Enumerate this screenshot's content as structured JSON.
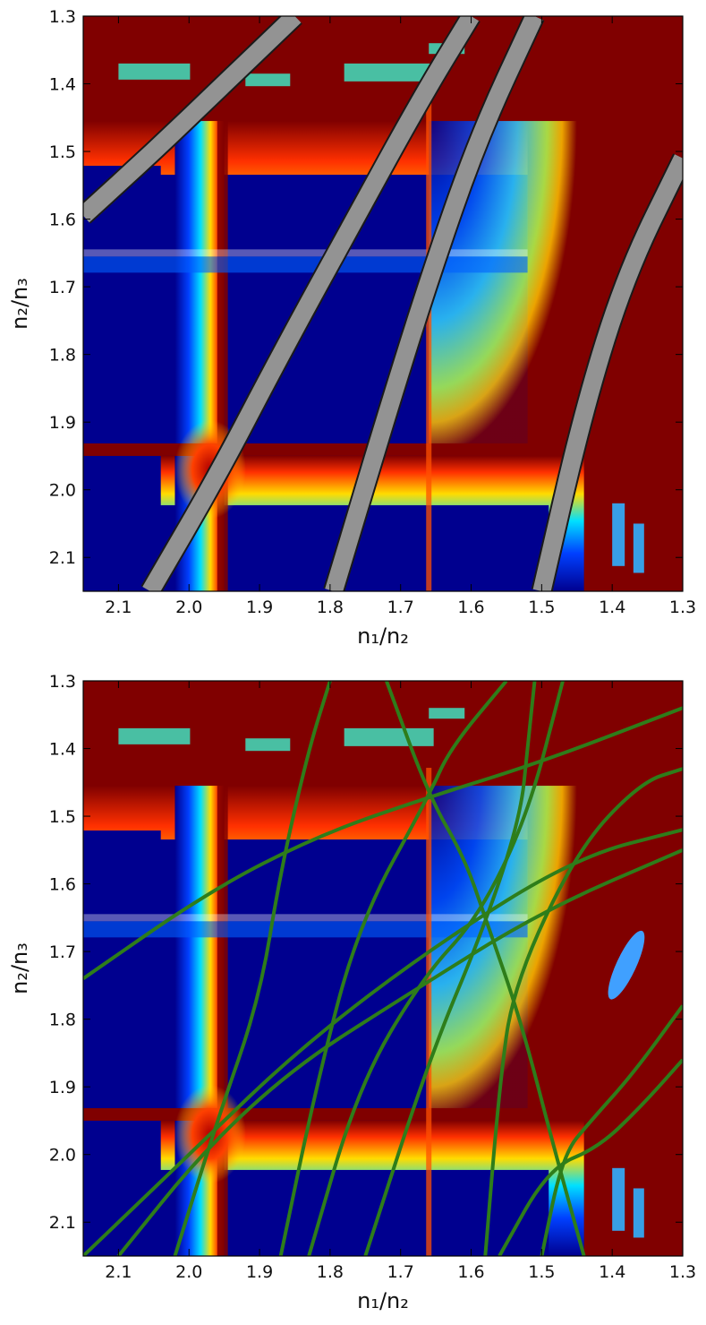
{
  "chart_data": [
    {
      "type": "heatmap",
      "title": "",
      "xlabel": "n₁/n₂",
      "ylabel": "n₂/n₃",
      "xlim": [
        2.15,
        1.3
      ],
      "ylim": [
        2.15,
        1.3
      ],
      "x_inverted": true,
      "y_inverted": true,
      "x_ticks": [
        "2.1",
        "2.0",
        "1.9",
        "1.8",
        "1.7",
        "1.6",
        "1.5",
        "1.4",
        "1.3"
      ],
      "y_ticks": [
        "1.3",
        "1.4",
        "1.5",
        "1.6",
        "1.7",
        "1.8",
        "1.9",
        "2.0",
        "2.1"
      ],
      "colormap": "jet",
      "grid": false,
      "features": {
        "resonance_lines_y": [
          1.455,
          1.65,
          1.95
        ],
        "resonance_lines_x": [
          1.95,
          1.66
        ],
        "hot_region_color": "#800000",
        "low_region_color": "#00008f"
      },
      "overlay": {
        "kind": "shaded_bands",
        "fill_color": "#9a9a9a",
        "edge_color": "#1a1a1a",
        "bands": [
          {
            "points": [
              [
                2.15,
                1.595
              ],
              [
                2.05,
                1.5
              ],
              [
                1.95,
                1.4
              ],
              [
                1.85,
                1.3
              ]
            ]
          },
          {
            "points": [
              [
                2.055,
                2.15
              ],
              [
                1.96,
                1.98
              ],
              [
                1.87,
                1.8
              ],
              [
                1.765,
                1.6
              ],
              [
                1.67,
                1.42
              ],
              [
                1.6,
                1.3
              ]
            ]
          },
          {
            "points": [
              [
                1.795,
                2.15
              ],
              [
                1.72,
                1.89
              ],
              [
                1.66,
                1.69
              ],
              [
                1.59,
                1.48
              ],
              [
                1.51,
                1.3
              ]
            ]
          },
          {
            "points": [
              [
                1.5,
                2.15
              ],
              [
                1.44,
                1.88
              ],
              [
                1.38,
                1.68
              ],
              [
                1.3,
                1.51
              ]
            ]
          }
        ]
      }
    },
    {
      "type": "heatmap",
      "title": "",
      "xlabel": "n₁/n₂",
      "ylabel": "n₂/n₃",
      "xlim": [
        2.15,
        1.3
      ],
      "ylim": [
        2.15,
        1.3
      ],
      "x_inverted": true,
      "y_inverted": true,
      "x_ticks": [
        "2.1",
        "2.0",
        "1.9",
        "1.8",
        "1.7",
        "1.6",
        "1.5",
        "1.4",
        "1.3"
      ],
      "y_ticks": [
        "1.3",
        "1.4",
        "1.5",
        "1.6",
        "1.7",
        "1.8",
        "1.9",
        "2.0",
        "2.1"
      ],
      "colormap": "jet",
      "grid": false,
      "features": {
        "resonance_lines_y": [
          1.455,
          1.65,
          1.95
        ],
        "resonance_lines_x": [
          1.95,
          1.66
        ],
        "hot_region_color": "#800000",
        "low_region_color": "#00008f"
      },
      "overlay": {
        "kind": "curves",
        "color": "#2e7d1a",
        "curves": [
          [
            [
              2.15,
              1.74
            ],
            [
              1.97,
              1.61
            ],
            [
              1.82,
              1.53
            ],
            [
              1.67,
              1.475
            ],
            [
              1.5,
              1.42
            ],
            [
              1.3,
              1.34
            ]
          ],
          [
            [
              2.15,
              2.15
            ],
            [
              1.99,
              1.99
            ],
            [
              1.84,
              1.84
            ],
            [
              1.65,
              1.69
            ],
            [
              1.45,
              1.56
            ],
            [
              1.3,
              1.52
            ]
          ],
          [
            [
              2.1,
              2.15
            ],
            [
              1.98,
              1.995
            ],
            [
              1.85,
              1.87
            ],
            [
              1.7,
              1.77
            ],
            [
              1.5,
              1.64
            ],
            [
              1.3,
              1.55
            ]
          ],
          [
            [
              2.02,
              2.15
            ],
            [
              1.96,
              1.95
            ],
            [
              1.9,
              1.77
            ],
            [
              1.87,
              1.58
            ],
            [
              1.83,
              1.4
            ],
            [
              1.8,
              1.3
            ]
          ],
          [
            [
              1.87,
              2.15
            ],
            [
              1.82,
              1.9
            ],
            [
              1.76,
              1.66
            ],
            [
              1.66,
              1.47
            ],
            [
              1.63,
              1.4
            ],
            [
              1.55,
              1.3
            ]
          ],
          [
            [
              1.83,
              2.15
            ],
            [
              1.76,
              1.9
            ],
            [
              1.67,
              1.74
            ],
            [
              1.59,
              1.65
            ],
            [
              1.52,
              1.5
            ],
            [
              1.47,
              1.3
            ]
          ],
          [
            [
              1.75,
              2.15
            ],
            [
              1.66,
              1.86
            ],
            [
              1.58,
              1.66
            ],
            [
              1.53,
              1.5
            ],
            [
              1.52,
              1.4
            ],
            [
              1.51,
              1.3
            ]
          ],
          [
            [
              1.58,
              2.15
            ],
            [
              1.56,
              1.9
            ],
            [
              1.54,
              1.75
            ],
            [
              1.45,
              1.55
            ],
            [
              1.36,
              1.45
            ],
            [
              1.3,
              1.43
            ]
          ],
          [
            [
              1.5,
              2.15
            ],
            [
              1.47,
              2.0
            ],
            [
              1.43,
              1.95
            ],
            [
              1.37,
              1.88
            ],
            [
              1.3,
              1.78
            ]
          ],
          [
            [
              1.56,
              2.15
            ],
            [
              1.49,
              2.02
            ],
            [
              1.42,
              1.99
            ],
            [
              1.36,
              1.93
            ],
            [
              1.3,
              1.86
            ]
          ],
          [
            [
              1.72,
              1.3
            ],
            [
              1.66,
              1.47
            ],
            [
              1.61,
              1.56
            ],
            [
              1.58,
              1.65
            ],
            [
              1.53,
              1.8
            ],
            [
              1.48,
              2.0
            ],
            [
              1.44,
              2.15
            ]
          ]
        ]
      }
    }
  ]
}
